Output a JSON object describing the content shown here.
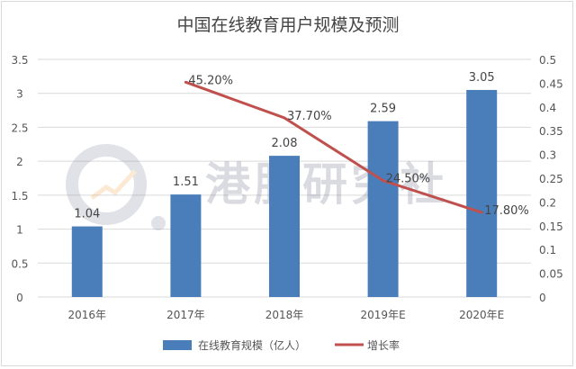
{
  "chart_data": {
    "type": "bar+line",
    "title": "中国在线教育用户规模及预测",
    "categories": [
      "2016年",
      "2017年",
      "2018年",
      "2019年E",
      "2020年E"
    ],
    "series": [
      {
        "name": "在线教育规模（亿人）",
        "type": "bar",
        "axis": "left",
        "color": "#4a7ebb",
        "values": [
          1.04,
          1.51,
          2.08,
          2.59,
          3.05
        ],
        "labels": [
          "1.04",
          "1.51",
          "2.08",
          "2.59",
          "3.05"
        ]
      },
      {
        "name": "增长率",
        "type": "line",
        "axis": "right",
        "color": "#c0504d",
        "values": [
          null,
          0.452,
          0.377,
          0.245,
          0.178
        ],
        "labels": [
          "",
          "45.20%",
          "37.70%",
          "24.50%",
          "17.80%"
        ]
      }
    ],
    "y_left": {
      "range": [
        0,
        3.5
      ],
      "ticks": [
        "0",
        "0.5",
        "1",
        "1.5",
        "2",
        "2.5",
        "3",
        "3.5"
      ]
    },
    "y_right": {
      "range": [
        0,
        0.5
      ],
      "ticks": [
        "0",
        "0.05",
        "0.1",
        "0.15",
        "0.2",
        "0.25",
        "0.3",
        "0.35",
        "0.4",
        "0.45",
        "0.5"
      ]
    },
    "grid": true,
    "legend": "bottom",
    "watermark": "港股研究社"
  }
}
